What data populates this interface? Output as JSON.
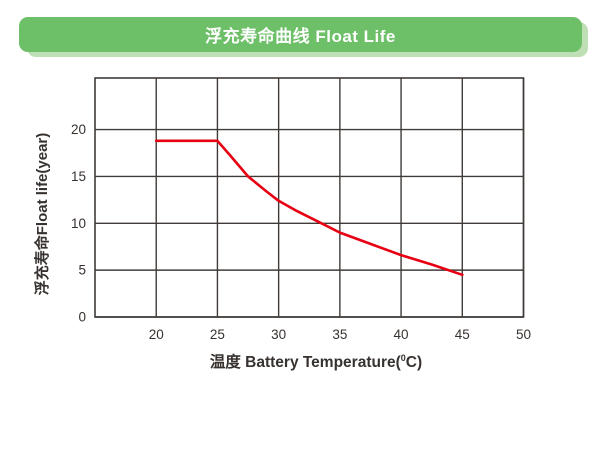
{
  "header": {
    "title": "浮充寿命曲线 Float Life"
  },
  "colors": {
    "banner_green": "#6dbf68",
    "banner_accent": "#bedfb4",
    "title_text": "#ffffff",
    "grid": "#403b38",
    "curve_red": "#e60012",
    "label": "#37322f"
  },
  "chart_data": {
    "type": "line",
    "title": "浮充寿命曲线 Float Life",
    "xlabel_parts": [
      "温度 Battery Temperature(",
      "0",
      "C)"
    ],
    "xlabel_plain": "温度 Battery Temperature(0C)",
    "ylabel": "浮充寿命Float life(year)",
    "xlim": [
      15,
      50
    ],
    "ylim": [
      0,
      25.5
    ],
    "x_ticks": [
      20,
      25,
      30,
      35,
      40,
      45,
      50
    ],
    "y_ticks": [
      0,
      5,
      10,
      15,
      20
    ],
    "grid": true,
    "legend": false,
    "series": [
      {
        "name": "Float life",
        "color": "#e60012",
        "x": [
          20,
          25,
          26,
          27.5,
          29,
          30,
          31.5,
          33.5,
          35,
          37.5,
          40,
          42.5,
          45
        ],
        "y": [
          18.8,
          18.8,
          17.3,
          15.0,
          13.4,
          12.4,
          11.3,
          10.0,
          9.0,
          7.8,
          6.6,
          5.6,
          4.5
        ]
      }
    ]
  }
}
